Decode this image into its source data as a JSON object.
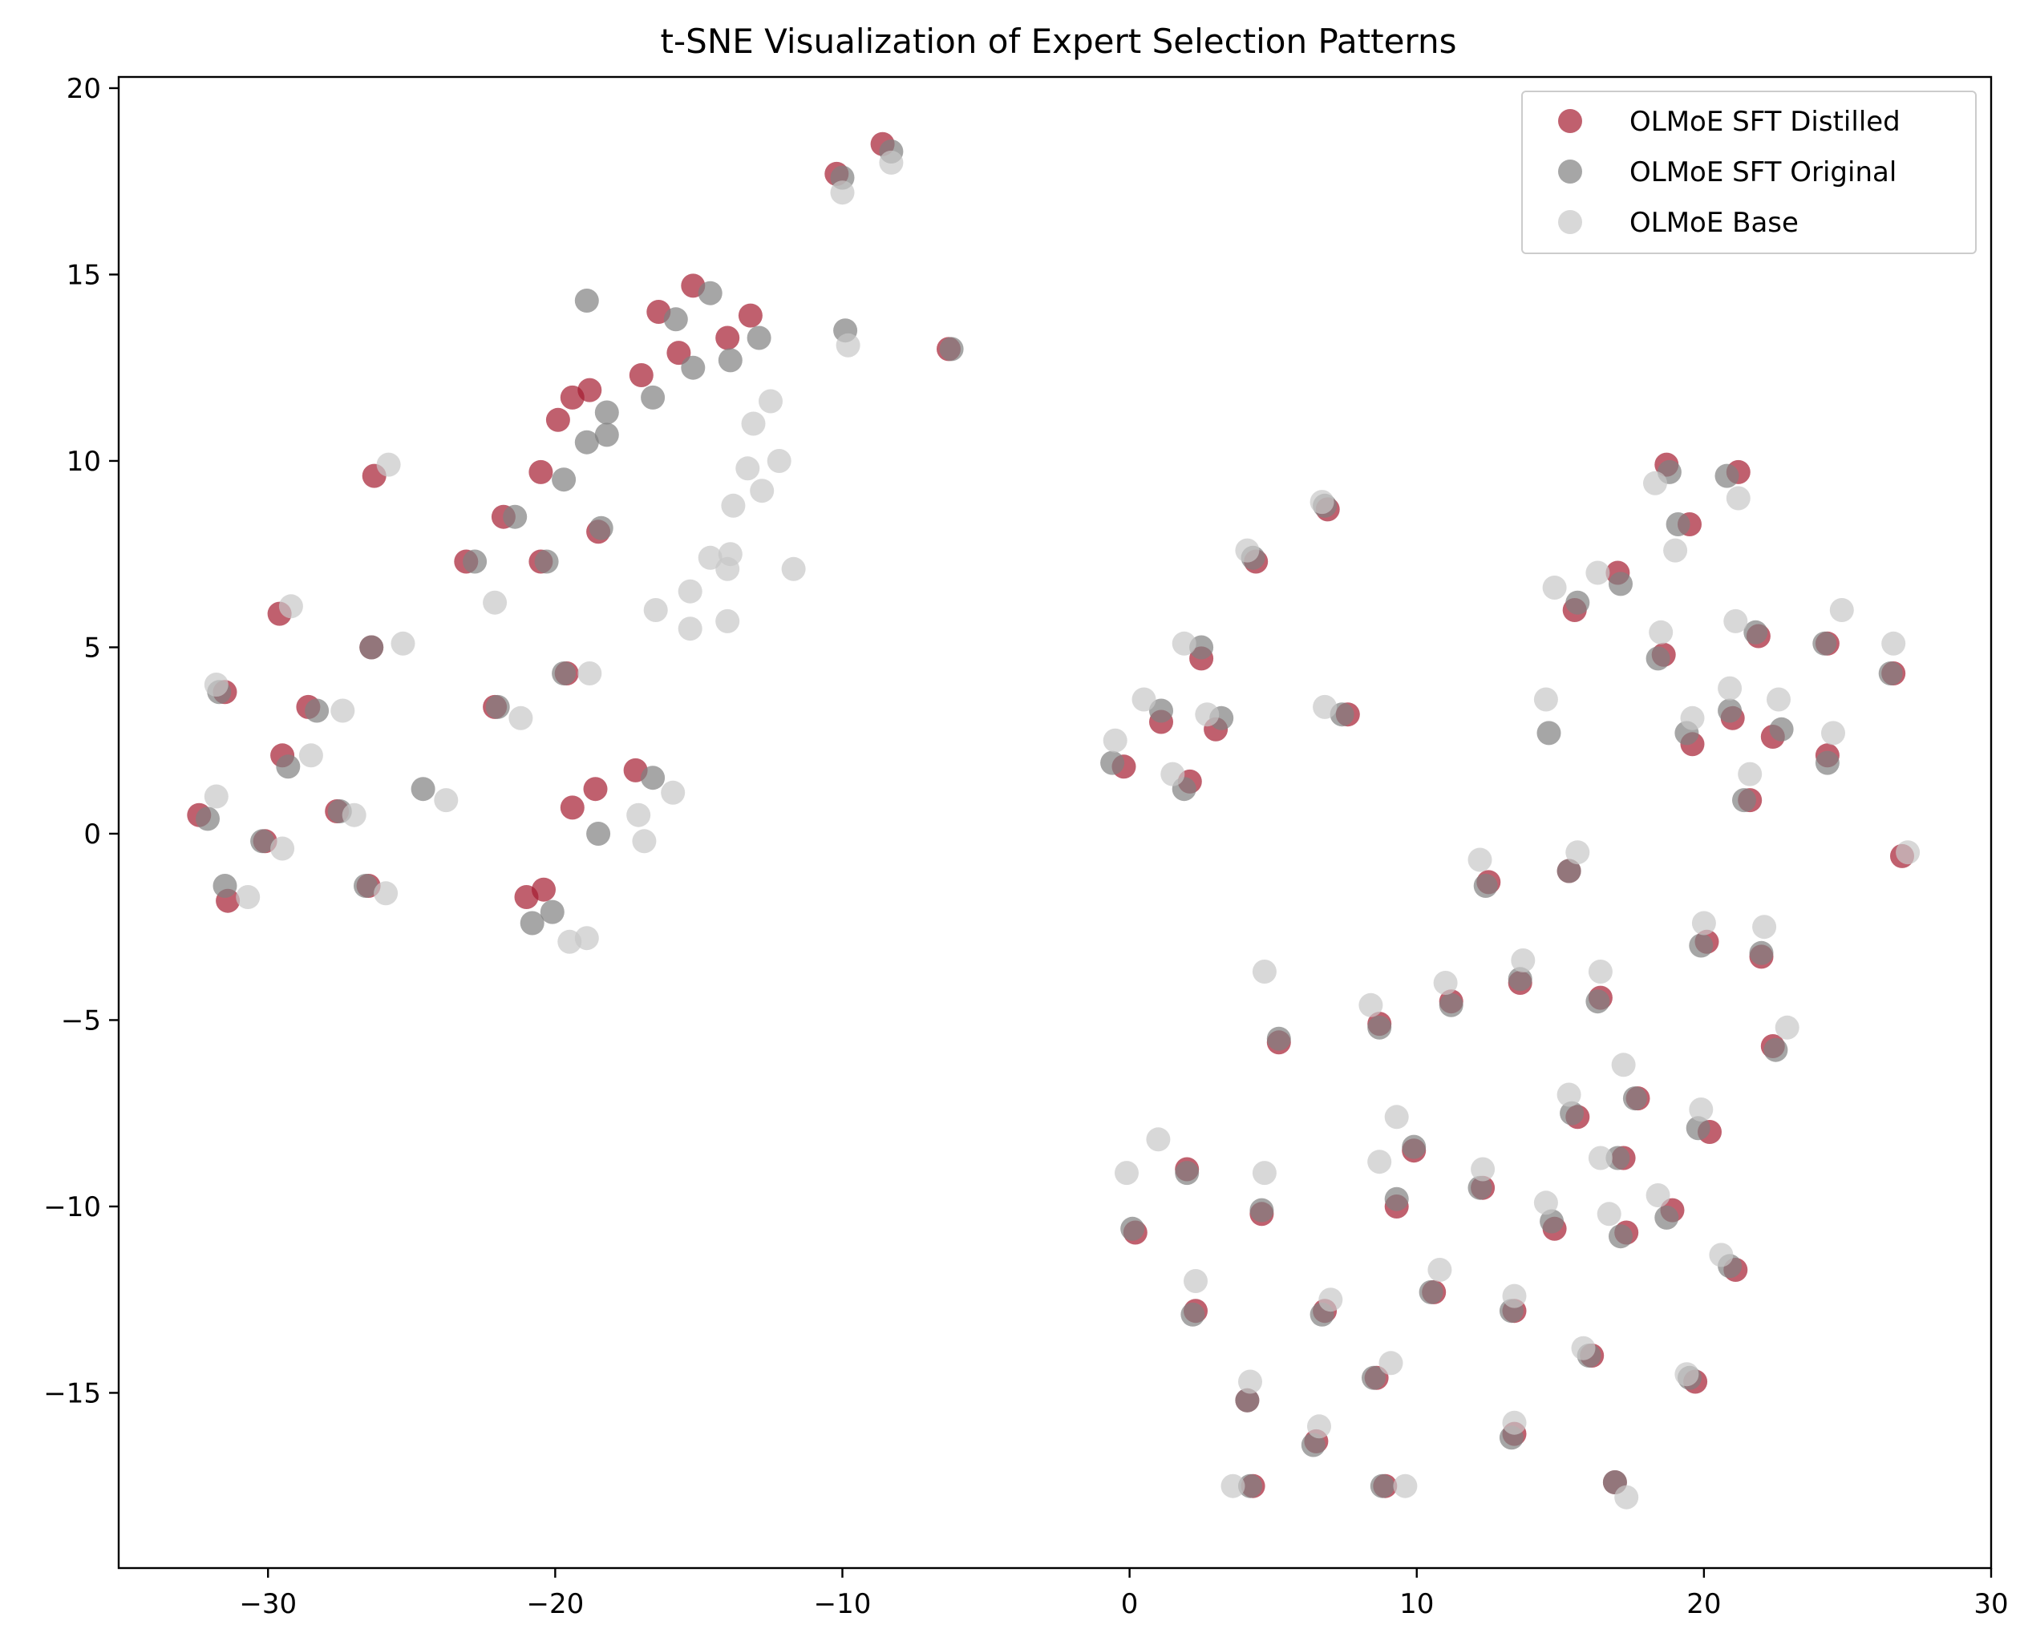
{
  "chart_data": {
    "type": "scatter",
    "title": "t-SNE Visualization of Expert Selection Patterns",
    "xlabel": "",
    "ylabel": "",
    "xlim": [
      -35.2,
      30.0
    ],
    "ylim": [
      -19.7,
      20.3
    ],
    "xticks": [
      -30,
      -20,
      -10,
      0,
      10,
      20,
      30
    ],
    "yticks": [
      -15,
      -10,
      -5,
      0,
      5,
      10,
      15,
      20
    ],
    "xtick_labels": [
      "−30",
      "−20",
      "−10",
      "0",
      "10",
      "20",
      "30"
    ],
    "ytick_labels": [
      "−15",
      "−10",
      "−5",
      "0",
      "5",
      "10",
      "15",
      "20"
    ],
    "grid": false,
    "legend_position": "top-right",
    "series": [
      {
        "name": "OLMoE SFT Distilled",
        "color": "#a51c30",
        "points": [
          [
            -8.6,
            18.5
          ],
          [
            -10.2,
            17.7
          ],
          [
            -15.2,
            14.7
          ],
          [
            -16.4,
            14.0
          ],
          [
            -13.2,
            13.9
          ],
          [
            -14.0,
            13.3
          ],
          [
            -15.7,
            12.9
          ],
          [
            -6.3,
            13.0
          ],
          [
            -17.0,
            12.3
          ],
          [
            -18.8,
            11.9
          ],
          [
            -19.4,
            11.7
          ],
          [
            -19.9,
            11.1
          ],
          [
            -20.5,
            9.7
          ],
          [
            -26.3,
            9.6
          ],
          [
            -21.8,
            8.5
          ],
          [
            -18.5,
            8.1
          ],
          [
            -23.1,
            7.3
          ],
          [
            -20.5,
            7.3
          ],
          [
            -29.6,
            5.9
          ],
          [
            -26.4,
            5.0
          ],
          [
            -19.6,
            4.3
          ],
          [
            -31.5,
            3.8
          ],
          [
            -28.6,
            3.4
          ],
          [
            -22.1,
            3.4
          ],
          [
            -29.5,
            2.1
          ],
          [
            -17.2,
            1.7
          ],
          [
            -18.6,
            1.2
          ],
          [
            -19.4,
            0.7
          ],
          [
            -32.4,
            0.5
          ],
          [
            -27.6,
            0.6
          ],
          [
            -30.1,
            -0.2
          ],
          [
            -26.5,
            -1.4
          ],
          [
            -31.4,
            -1.8
          ],
          [
            -21.0,
            -1.7
          ],
          [
            -20.4,
            -1.5
          ],
          [
            6.9,
            8.7
          ],
          [
            4.4,
            7.3
          ],
          [
            2.5,
            4.7
          ],
          [
            1.1,
            3.0
          ],
          [
            3.0,
            2.8
          ],
          [
            7.6,
            3.2
          ],
          [
            -0.2,
            1.8
          ],
          [
            2.1,
            1.4
          ],
          [
            18.7,
            9.9
          ],
          [
            21.2,
            9.7
          ],
          [
            19.5,
            8.3
          ],
          [
            17.0,
            7.0
          ],
          [
            15.5,
            6.0
          ],
          [
            18.6,
            4.8
          ],
          [
            21.9,
            5.3
          ],
          [
            24.3,
            5.1
          ],
          [
            26.6,
            4.3
          ],
          [
            21.0,
            3.1
          ],
          [
            22.4,
            2.6
          ],
          [
            19.6,
            2.4
          ],
          [
            24.3,
            2.1
          ],
          [
            21.6,
            0.9
          ],
          [
            26.9,
            -0.6
          ],
          [
            12.5,
            -1.3
          ],
          [
            15.3,
            -1.0
          ],
          [
            20.1,
            -2.9
          ],
          [
            22.0,
            -3.3
          ],
          [
            13.6,
            -4.0
          ],
          [
            16.4,
            -4.4
          ],
          [
            11.2,
            -4.5
          ],
          [
            8.7,
            -5.1
          ],
          [
            5.2,
            -5.6
          ],
          [
            22.4,
            -5.7
          ],
          [
            17.7,
            -7.1
          ],
          [
            15.6,
            -7.6
          ],
          [
            20.2,
            -8.0
          ],
          [
            17.2,
            -8.7
          ],
          [
            9.9,
            -8.5
          ],
          [
            2.0,
            -9.0
          ],
          [
            12.3,
            -9.5
          ],
          [
            9.3,
            -10.0
          ],
          [
            4.6,
            -10.2
          ],
          [
            18.9,
            -10.1
          ],
          [
            14.8,
            -10.6
          ],
          [
            17.3,
            -10.7
          ],
          [
            0.2,
            -10.7
          ],
          [
            21.1,
            -11.7
          ],
          [
            10.6,
            -12.3
          ],
          [
            2.3,
            -12.8
          ],
          [
            6.8,
            -12.8
          ],
          [
            13.4,
            -12.8
          ],
          [
            16.1,
            -14.0
          ],
          [
            8.6,
            -14.6
          ],
          [
            19.7,
            -14.7
          ],
          [
            4.1,
            -15.2
          ],
          [
            13.4,
            -16.1
          ],
          [
            6.5,
            -16.3
          ],
          [
            4.3,
            -17.5
          ],
          [
            8.9,
            -17.5
          ],
          [
            16.9,
            -17.4
          ]
        ]
      },
      {
        "name": "OLMoE SFT Original",
        "color": "#808080",
        "points": [
          [
            -8.3,
            18.3
          ],
          [
            -10.0,
            17.6
          ],
          [
            -14.6,
            14.5
          ],
          [
            -15.8,
            13.8
          ],
          [
            -18.9,
            14.3
          ],
          [
            -12.9,
            13.3
          ],
          [
            -15.2,
            12.5
          ],
          [
            -9.9,
            13.5
          ],
          [
            -13.9,
            12.7
          ],
          [
            -16.6,
            11.7
          ],
          [
            -18.2,
            11.3
          ],
          [
            -18.2,
            10.7
          ],
          [
            -18.9,
            10.5
          ],
          [
            -19.7,
            9.5
          ],
          [
            -21.4,
            8.5
          ],
          [
            -18.4,
            8.2
          ],
          [
            -22.8,
            7.3
          ],
          [
            -20.3,
            7.3
          ],
          [
            -26.4,
            5.0
          ],
          [
            -19.7,
            4.3
          ],
          [
            -31.7,
            3.8
          ],
          [
            -28.3,
            3.3
          ],
          [
            -22.0,
            3.4
          ],
          [
            -29.3,
            1.8
          ],
          [
            -16.6,
            1.5
          ],
          [
            -24.6,
            1.2
          ],
          [
            -18.5,
            0.0
          ],
          [
            -32.1,
            0.4
          ],
          [
            -27.5,
            0.6
          ],
          [
            -30.2,
            -0.2
          ],
          [
            -26.6,
            -1.4
          ],
          [
            -31.5,
            -1.4
          ],
          [
            -20.1,
            -2.1
          ],
          [
            -20.8,
            -2.4
          ],
          [
            -6.2,
            13.0
          ],
          [
            6.8,
            8.8
          ],
          [
            4.3,
            7.4
          ],
          [
            2.5,
            5.0
          ],
          [
            1.1,
            3.3
          ],
          [
            3.2,
            3.1
          ],
          [
            7.4,
            3.2
          ],
          [
            -0.6,
            1.9
          ],
          [
            1.9,
            1.2
          ],
          [
            18.8,
            9.7
          ],
          [
            20.8,
            9.6
          ],
          [
            19.1,
            8.3
          ],
          [
            17.1,
            6.7
          ],
          [
            15.6,
            6.2
          ],
          [
            18.4,
            4.7
          ],
          [
            21.8,
            5.4
          ],
          [
            24.2,
            5.1
          ],
          [
            26.5,
            4.3
          ],
          [
            20.9,
            3.3
          ],
          [
            22.7,
            2.8
          ],
          [
            19.4,
            2.7
          ],
          [
            24.3,
            1.9
          ],
          [
            21.4,
            0.9
          ],
          [
            14.6,
            2.7
          ],
          [
            12.4,
            -1.4
          ],
          [
            15.3,
            -1.0
          ],
          [
            19.9,
            -3.0
          ],
          [
            22.0,
            -3.2
          ],
          [
            13.6,
            -3.9
          ],
          [
            16.3,
            -4.5
          ],
          [
            11.2,
            -4.6
          ],
          [
            8.7,
            -5.2
          ],
          [
            5.2,
            -5.5
          ],
          [
            22.5,
            -5.8
          ],
          [
            17.6,
            -7.1
          ],
          [
            15.4,
            -7.5
          ],
          [
            19.8,
            -7.9
          ],
          [
            17.0,
            -8.7
          ],
          [
            9.9,
            -8.4
          ],
          [
            2.0,
            -9.1
          ],
          [
            12.2,
            -9.5
          ],
          [
            9.3,
            -9.8
          ],
          [
            4.6,
            -10.1
          ],
          [
            18.7,
            -10.3
          ],
          [
            14.7,
            -10.4
          ],
          [
            17.1,
            -10.8
          ],
          [
            0.1,
            -10.6
          ],
          [
            20.9,
            -11.6
          ],
          [
            10.5,
            -12.3
          ],
          [
            2.2,
            -12.9
          ],
          [
            6.7,
            -12.9
          ],
          [
            13.3,
            -12.8
          ],
          [
            16.0,
            -14.0
          ],
          [
            8.5,
            -14.6
          ],
          [
            19.5,
            -14.6
          ],
          [
            4.1,
            -15.2
          ],
          [
            13.3,
            -16.2
          ],
          [
            6.4,
            -16.4
          ],
          [
            4.2,
            -17.5
          ],
          [
            8.8,
            -17.5
          ],
          [
            16.9,
            -17.4
          ]
        ]
      },
      {
        "name": "OLMoE Base",
        "color": "#c8c8c8",
        "points": [
          [
            -8.3,
            18.0
          ],
          [
            -10.0,
            17.2
          ],
          [
            -9.8,
            13.1
          ],
          [
            -12.5,
            11.6
          ],
          [
            -13.1,
            11.0
          ],
          [
            -12.2,
            10.0
          ],
          [
            -13.3,
            9.8
          ],
          [
            -12.8,
            9.2
          ],
          [
            -13.8,
            8.8
          ],
          [
            -13.9,
            7.5
          ],
          [
            -14.6,
            7.4
          ],
          [
            -14.0,
            7.1
          ],
          [
            -11.7,
            7.1
          ],
          [
            -16.5,
            6.0
          ],
          [
            -15.3,
            6.5
          ],
          [
            -15.3,
            5.5
          ],
          [
            -14.0,
            5.7
          ],
          [
            -18.8,
            4.3
          ],
          [
            -21.2,
            3.1
          ],
          [
            -22.1,
            6.2
          ],
          [
            -25.8,
            9.9
          ],
          [
            -29.2,
            6.1
          ],
          [
            -25.3,
            5.1
          ],
          [
            -31.8,
            4.0
          ],
          [
            -27.4,
            3.3
          ],
          [
            -28.5,
            2.1
          ],
          [
            -31.8,
            1.0
          ],
          [
            -27.0,
            0.5
          ],
          [
            -23.8,
            0.9
          ],
          [
            -29.5,
            -0.4
          ],
          [
            -25.9,
            -1.6
          ],
          [
            -30.7,
            -1.7
          ],
          [
            -19.5,
            -2.9
          ],
          [
            -18.9,
            -2.8
          ],
          [
            -15.9,
            1.1
          ],
          [
            -17.1,
            0.5
          ],
          [
            -16.9,
            -0.2
          ],
          [
            6.7,
            8.9
          ],
          [
            4.1,
            7.6
          ],
          [
            1.9,
            5.1
          ],
          [
            0.5,
            3.6
          ],
          [
            2.7,
            3.2
          ],
          [
            6.8,
            3.4
          ],
          [
            -0.5,
            2.5
          ],
          [
            1.5,
            1.6
          ],
          [
            18.3,
            9.4
          ],
          [
            21.2,
            9.0
          ],
          [
            19.0,
            7.6
          ],
          [
            16.3,
            7.0
          ],
          [
            14.8,
            6.6
          ],
          [
            18.5,
            5.4
          ],
          [
            21.1,
            5.7
          ],
          [
            24.8,
            6.0
          ],
          [
            26.6,
            5.1
          ],
          [
            20.9,
            3.9
          ],
          [
            22.6,
            3.6
          ],
          [
            19.6,
            3.1
          ],
          [
            24.5,
            2.7
          ],
          [
            21.6,
            1.6
          ],
          [
            27.1,
            -0.5
          ],
          [
            14.5,
            3.6
          ],
          [
            12.2,
            -0.7
          ],
          [
            15.6,
            -0.5
          ],
          [
            20.0,
            -2.4
          ],
          [
            22.1,
            -2.5
          ],
          [
            13.7,
            -3.4
          ],
          [
            16.4,
            -3.7
          ],
          [
            11.0,
            -4.0
          ],
          [
            8.4,
            -4.6
          ],
          [
            4.7,
            -3.7
          ],
          [
            22.9,
            -5.2
          ],
          [
            17.2,
            -6.2
          ],
          [
            15.3,
            -7.0
          ],
          [
            9.3,
            -7.6
          ],
          [
            19.9,
            -7.4
          ],
          [
            16.4,
            -8.7
          ],
          [
            8.7,
            -8.8
          ],
          [
            1.0,
            -8.2
          ],
          [
            12.3,
            -9.0
          ],
          [
            -0.1,
            -9.1
          ],
          [
            4.7,
            -9.1
          ],
          [
            18.4,
            -9.7
          ],
          [
            14.5,
            -9.9
          ],
          [
            16.7,
            -10.2
          ],
          [
            20.6,
            -11.3
          ],
          [
            10.8,
            -11.7
          ],
          [
            2.3,
            -12.0
          ],
          [
            7.0,
            -12.5
          ],
          [
            13.4,
            -12.4
          ],
          [
            15.8,
            -13.8
          ],
          [
            9.1,
            -14.2
          ],
          [
            19.4,
            -14.5
          ],
          [
            4.2,
            -14.7
          ],
          [
            13.4,
            -15.8
          ],
          [
            6.6,
            -15.9
          ],
          [
            3.6,
            -17.5
          ],
          [
            9.6,
            -17.5
          ],
          [
            17.3,
            -17.8
          ]
        ]
      }
    ]
  }
}
